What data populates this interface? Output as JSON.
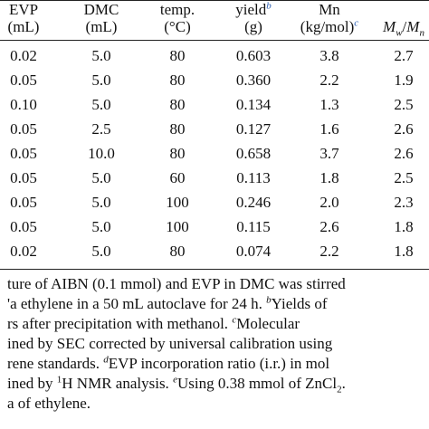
{
  "table": {
    "headers": {
      "evp": [
        "EVP",
        "(mL)"
      ],
      "dmc": [
        "DMC",
        "(mL)"
      ],
      "temp": [
        "temp.",
        "(°C)"
      ],
      "yield": [
        "yield",
        "(g)"
      ],
      "yield_ref": "b",
      "mn": [
        "Mn",
        "(kg/mol)"
      ],
      "mn_ref": "c",
      "mwmn": {
        "mw": "M",
        "w_sub": "w",
        "slash": "/",
        "mn": "M",
        "n_sub": "n"
      }
    },
    "rows": [
      {
        "evp": "0.02",
        "dmc": "5.0",
        "temp": "80",
        "yield": "0.603",
        "mn": "3.8",
        "mwmn": "2.7"
      },
      {
        "evp": "0.05",
        "dmc": "5.0",
        "temp": "80",
        "yield": "0.360",
        "mn": "2.2",
        "mwmn": "1.9"
      },
      {
        "evp": "0.10",
        "dmc": "5.0",
        "temp": "80",
        "yield": "0.134",
        "mn": "1.3",
        "mwmn": "2.5"
      },
      {
        "evp": "0.05",
        "dmc": "2.5",
        "temp": "80",
        "yield": "0.127",
        "mn": "1.6",
        "mwmn": "2.6"
      },
      {
        "evp": "0.05",
        "dmc": "10.0",
        "temp": "80",
        "yield": "0.658",
        "mn": "3.7",
        "mwmn": "2.6"
      },
      {
        "evp": "0.05",
        "dmc": "5.0",
        "temp": "60",
        "yield": "0.113",
        "mn": "1.8",
        "mwmn": "2.5"
      },
      {
        "evp": "0.05",
        "dmc": "5.0",
        "temp": "100",
        "yield": "0.246",
        "mn": "2.0",
        "mwmn": "2.3"
      },
      {
        "evp": "0.05",
        "dmc": "5.0",
        "temp": "100",
        "yield": "0.115",
        "mn": "2.6",
        "mwmn": "1.8"
      },
      {
        "evp": "0.02",
        "dmc": "5.0",
        "temp": "80",
        "yield": "0.074",
        "mn": "2.2",
        "mwmn": "1.8"
      }
    ]
  },
  "notes": {
    "l1": "ture of AIBN (0.1 mmol) and EVP in DMC was stirred",
    "l2a": "'a ethylene in a 50 mL autoclave for 24 h. ",
    "l2_sup": "b",
    "l2b": "Yields of",
    "l3a": "rs after precipitation with methanol. ",
    "l3_sup": "c",
    "l3b": "Molecular",
    "l4": "ined by SEC corrected by universal calibration using",
    "l5a": "rene standards. ",
    "l5_sup": "d",
    "l5b": "EVP incorporation ratio (i.r.) in mol",
    "l6a": "ined by ",
    "l6_sup": "1",
    "l6b": "H NMR analysis. ",
    "l6_sup2": "e",
    "l6c": "Using 0.38 mmol of ZnCl",
    "l6_sub": "2",
    "l6d": ".",
    "l7": "a of ethylene."
  }
}
